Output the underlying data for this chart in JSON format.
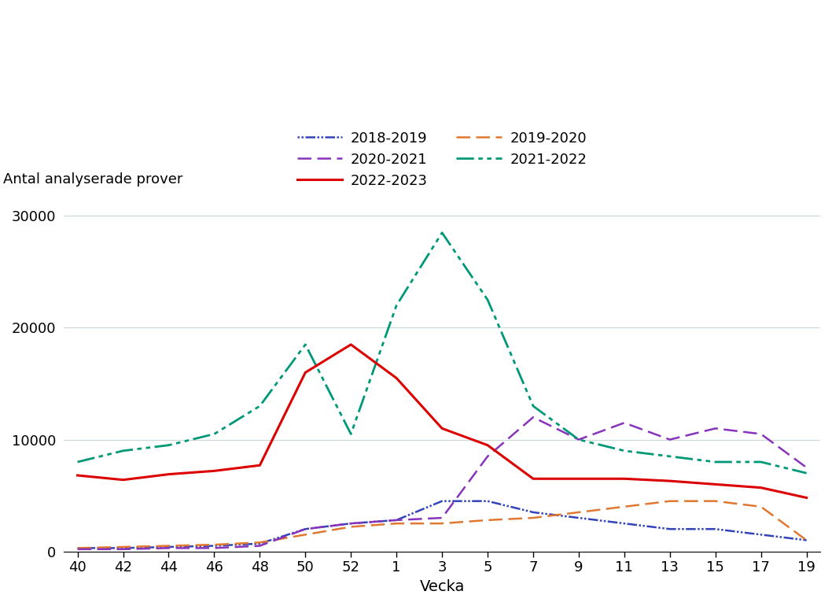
{
  "title": "",
  "ylabel": "Antal analyserade prover",
  "xlabel": "Vecka",
  "ylim": [
    0,
    32000
  ],
  "yticks": [
    0,
    10000,
    20000,
    30000
  ],
  "x_labels": [
    "40",
    "42",
    "44",
    "46",
    "48",
    "50",
    "52",
    "1",
    "3",
    "5",
    "7",
    "9",
    "11",
    "13",
    "15",
    "17",
    "19"
  ],
  "series": [
    {
      "label": "2018-2019",
      "color": "#3344bb",
      "linestyle": "dotted_dash",
      "linewidth": 1.8,
      "values": [
        300,
        300,
        400,
        500,
        700,
        2000,
        2500,
        2800,
        4500,
        4500,
        3500,
        3000,
        2500,
        2000,
        2000,
        1500,
        1000
      ]
    },
    {
      "label": "2019-2020",
      "color": "#e07830",
      "linestyle": "dashed",
      "linewidth": 1.8,
      "values": [
        300,
        400,
        500,
        600,
        800,
        1500,
        2200,
        2500,
        2500,
        2800,
        3000,
        3500,
        4000,
        4500,
        4500,
        4000,
        1000
      ]
    },
    {
      "label": "2020-2021",
      "color": "#8833bb",
      "linestyle": "dashed",
      "linewidth": 1.8,
      "values": [
        200,
        200,
        300,
        300,
        500,
        2000,
        2500,
        2800,
        3000,
        8500,
        12000,
        10000,
        11500,
        10000,
        11000,
        10500,
        7500
      ]
    },
    {
      "label": "2021-2022",
      "color": "#009977",
      "linestyle": "dashdot",
      "linewidth": 2.0,
      "values": [
        8000,
        9000,
        9500,
        10500,
        13000,
        18500,
        10500,
        22000,
        28500,
        22500,
        13000,
        10000,
        9000,
        8500,
        8000,
        8000,
        7000
      ]
    },
    {
      "label": "2022-2023",
      "color": "#dd0000",
      "linestyle": "solid",
      "linewidth": 2.2,
      "values": [
        6800,
        6400,
        6900,
        7200,
        7700,
        16000,
        18500,
        15500,
        11000,
        9500,
        6500,
        6500,
        6500,
        6300,
        6000,
        5700,
        4800
      ]
    }
  ],
  "legend_order": [
    0,
    2,
    4,
    1,
    3
  ],
  "background_color": "#ffffff",
  "grid_color": "#c8d8d8",
  "legend_ncol": 2
}
